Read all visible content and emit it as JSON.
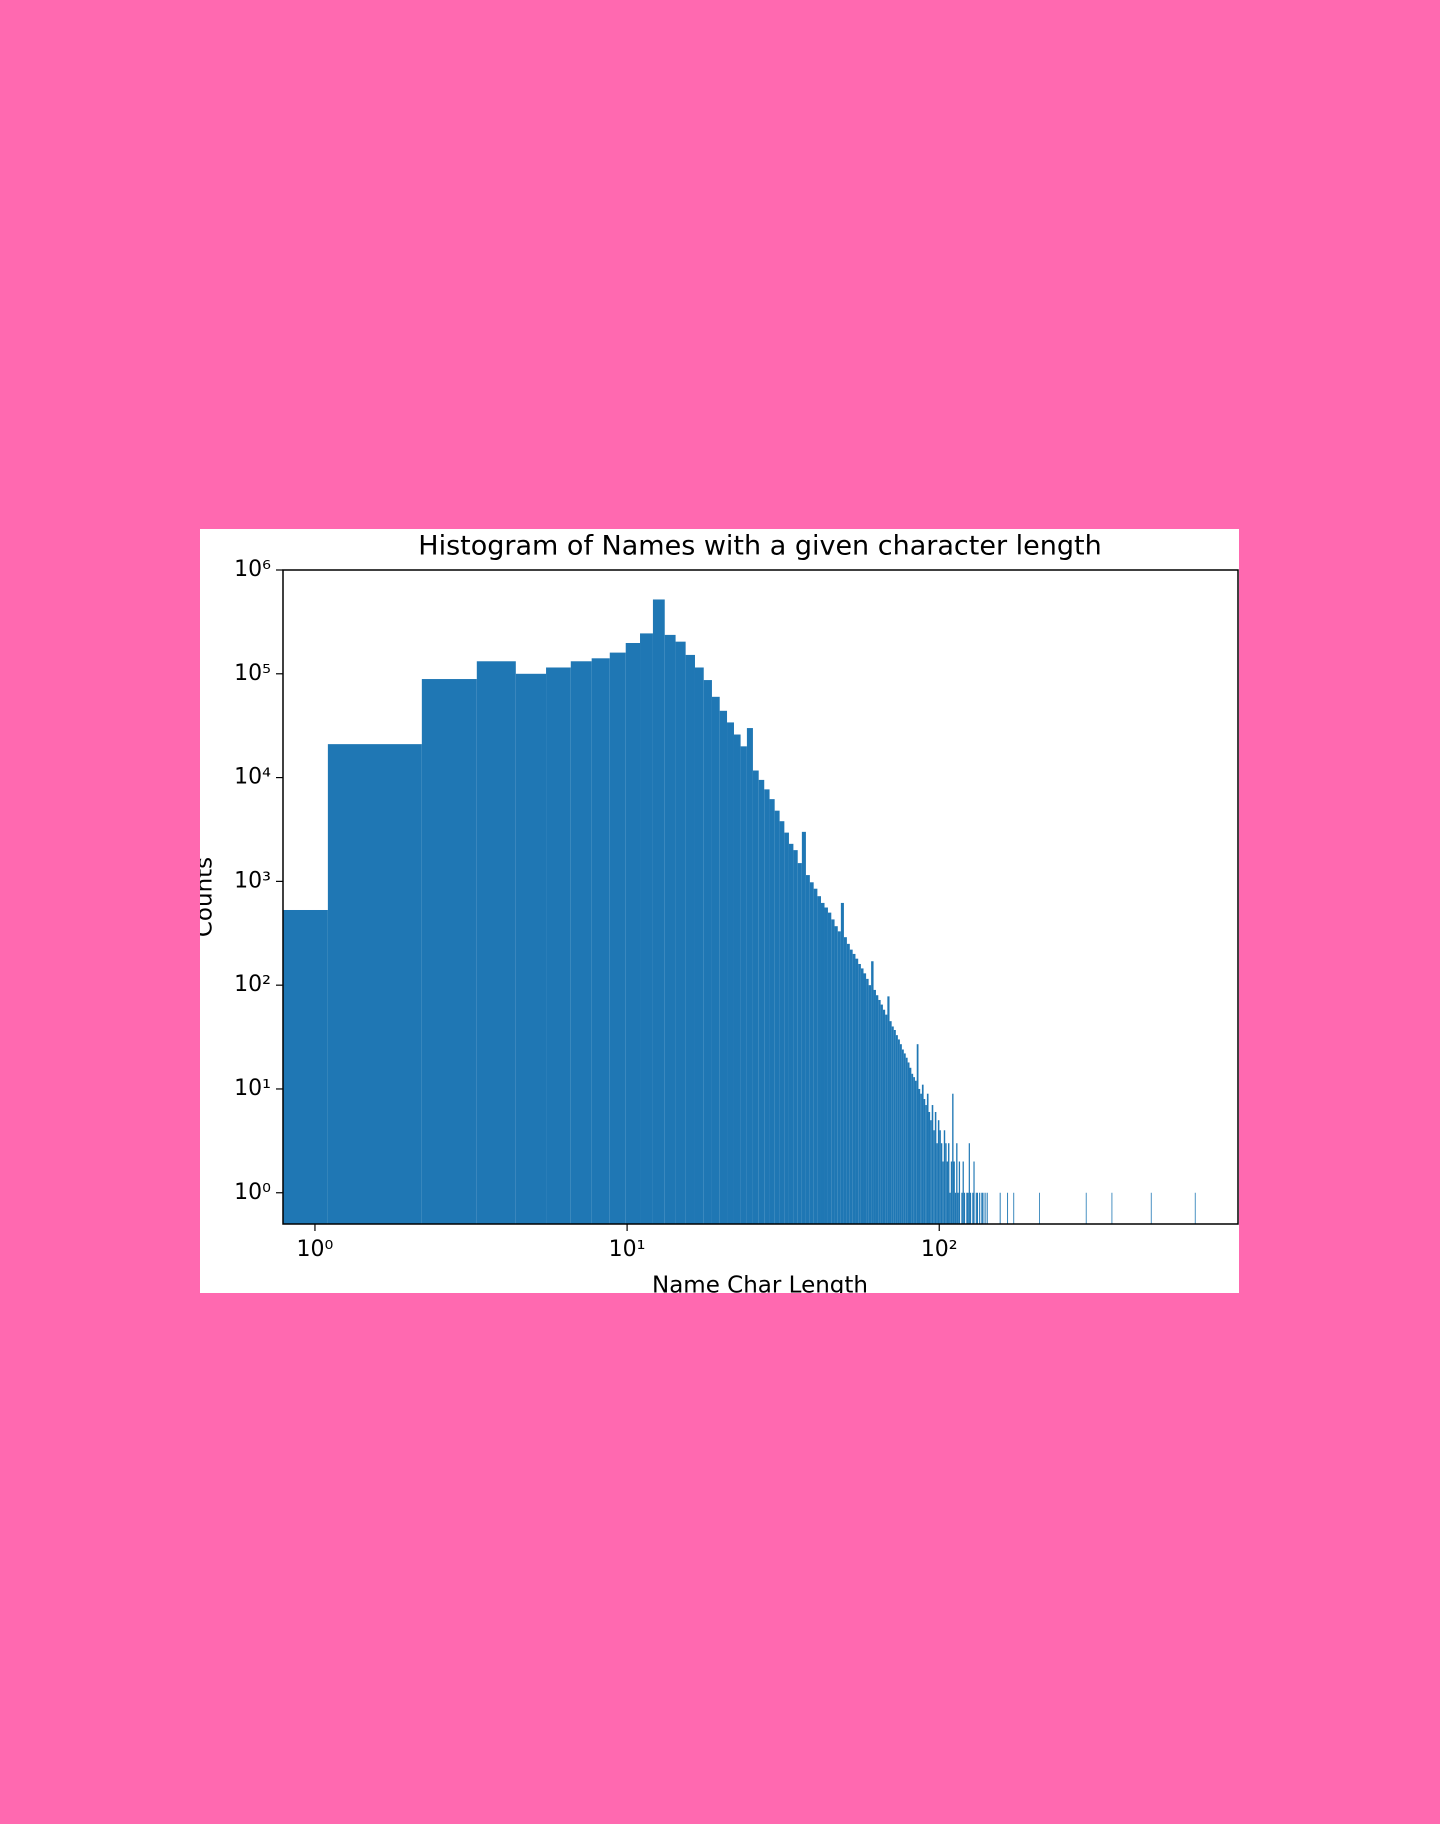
{
  "chart_data": {
    "type": "histogram",
    "title": "Histogram of Names with a given character length",
    "xlabel": "Name Char Length",
    "ylabel": "Counts",
    "color": "#1f77b4",
    "xscale": "log",
    "yscale": "log",
    "xlim": [
      0.79,
      906
    ],
    "ylim": [
      0.5,
      1000000
    ],
    "xticks": [
      {
        "value": 1,
        "label": "10⁰"
      },
      {
        "value": 10,
        "label": "10¹"
      },
      {
        "value": 100,
        "label": "10²"
      }
    ],
    "yticks": [
      {
        "value": 1,
        "label": "10⁰"
      },
      {
        "value": 10,
        "label": "10¹"
      },
      {
        "value": 100,
        "label": "10²"
      },
      {
        "value": 1000,
        "label": "10³"
      },
      {
        "value": 10000,
        "label": "10⁴"
      },
      {
        "value": 100000,
        "label": "10⁵"
      },
      {
        "value": 1000000,
        "label": "10⁶"
      }
    ],
    "bins": [
      0,
      1.1,
      2.2,
      3.3,
      4.4,
      5.5,
      6.6,
      7.7,
      8.8,
      9.9,
      11,
      12.1,
      13.2,
      14.3,
      15.4,
      16.5,
      17.6,
      18.7,
      19.8,
      20.9,
      22,
      23.1,
      24.2,
      25.3,
      26.4,
      27.5,
      28.6,
      29.7,
      30.8,
      31.9,
      33,
      34.1,
      35.2,
      36.3,
      37.4,
      38.5,
      39.6,
      40.7,
      41.8,
      42.9,
      44,
      45.1,
      46.2,
      47.3,
      48.4,
      49.5,
      50.6,
      51.7,
      52.8,
      53.9,
      55,
      56.1,
      57.2,
      58.3,
      59.4,
      60.5,
      61.6,
      62.7,
      63.8,
      64.9,
      66,
      67.1,
      68.2,
      69.3,
      70.4,
      71.5,
      72.6,
      73.7,
      74.8,
      75.9,
      77,
      78.1,
      79.2,
      80.3,
      81.4,
      82.5,
      83.6,
      84.7,
      85.8,
      86.9,
      88,
      89.1,
      90.2,
      91.3,
      92.4,
      93.5,
      94.6,
      95.7,
      96.8,
      97.9,
      99,
      100.1,
      101.2,
      102.3,
      103.4,
      104.5,
      105.6,
      106.7,
      107.8,
      108.9,
      110,
      111.1,
      112.2,
      113.3,
      114.4,
      115.5,
      116.6,
      117.7,
      118.8,
      119.9,
      121,
      122.1,
      123.2,
      124.3,
      125.4,
      126.5,
      127.6,
      128.7,
      129.8,
      130.9,
      132,
      133.1,
      134.2,
      135.3,
      136.4,
      137.5,
      138.6,
      139.7,
      140.8,
      141.9,
      143,
      156.2,
      157.3,
      165,
      166.1,
      172.7,
      173.8,
      209,
      210.1,
      294.8,
      295.9,
      356.4,
      357.5,
      476.3,
      477.4,
      658.9,
      660
    ],
    "values": [
      530,
      21000,
      89000,
      132000,
      100000,
      115000,
      132000,
      141000,
      160000,
      198000,
      245000,
      520000,
      237000,
      204000,
      152000,
      115000,
      87000,
      60000,
      44000,
      34000,
      26000,
      20000,
      30000,
      11700,
      9500,
      7700,
      6200,
      4800,
      3800,
      2950,
      2300,
      2000,
      1500,
      3000,
      1150,
      980,
      850,
      720,
      620,
      560,
      500,
      430,
      370,
      330,
      620,
      290,
      250,
      220,
      200,
      180,
      160,
      145,
      130,
      115,
      100,
      170,
      90,
      80,
      72,
      65,
      58,
      52,
      78,
      45,
      40,
      37,
      33,
      30,
      27,
      24,
      22,
      20,
      18,
      16,
      14,
      13,
      12,
      27,
      10,
      9,
      11,
      8,
      7,
      9,
      6,
      5,
      7,
      4,
      6,
      3,
      5,
      4,
      3,
      2,
      4,
      3,
      2,
      3,
      1,
      2,
      9,
      2,
      1,
      3,
      1,
      2,
      0,
      1,
      2,
      1,
      0,
      1,
      1,
      3,
      1,
      0,
      1,
      2,
      0,
      1,
      1,
      0,
      1,
      0,
      1,
      1,
      0,
      1,
      0,
      1,
      0,
      1,
      0,
      1,
      0,
      1,
      0,
      1,
      0,
      1,
      0,
      1,
      0,
      1,
      0,
      1
    ]
  }
}
